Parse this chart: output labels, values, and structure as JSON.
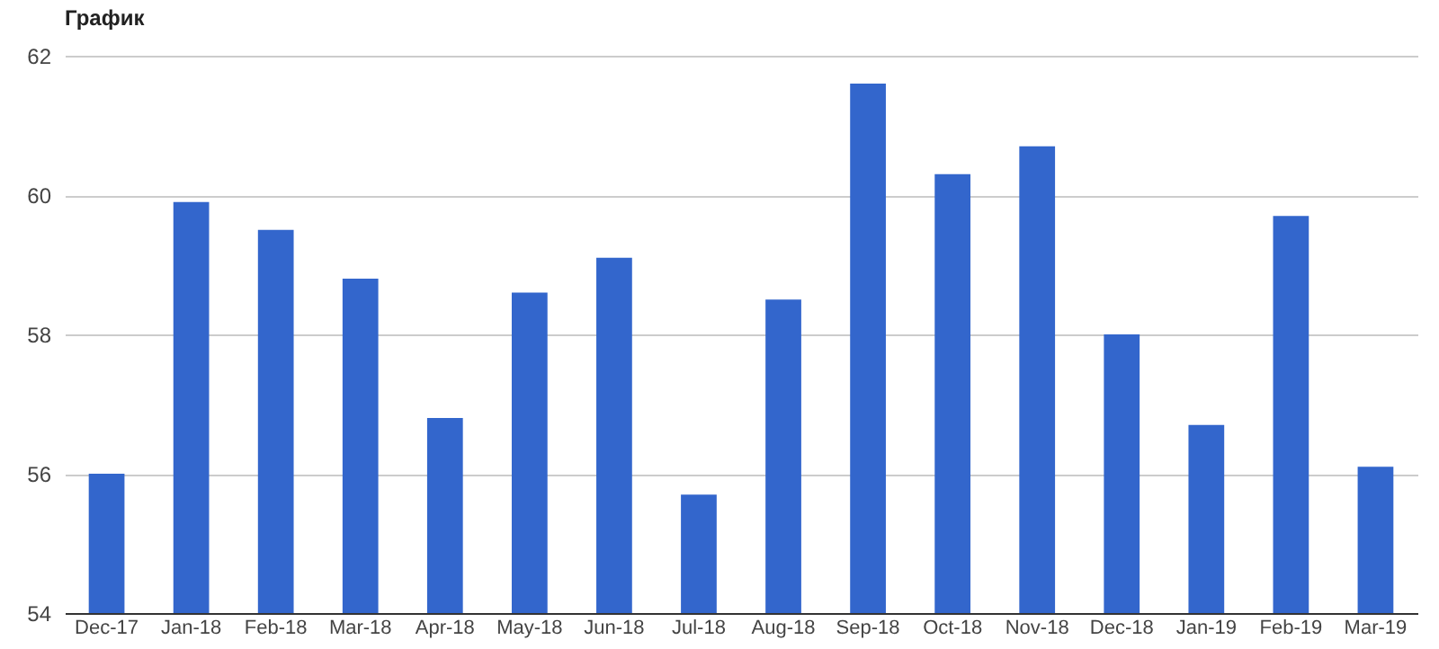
{
  "chart_data": {
    "type": "bar",
    "title": "График",
    "categories": [
      "Dec-17",
      "Jan-18",
      "Feb-18",
      "Mar-18",
      "Apr-18",
      "May-18",
      "Jun-18",
      "Jul-18",
      "Aug-18",
      "Sep-18",
      "Oct-18",
      "Nov-18",
      "Dec-18",
      "Jan-19",
      "Feb-19",
      "Mar-19"
    ],
    "values": [
      56.0,
      59.9,
      59.5,
      58.8,
      56.8,
      58.6,
      59.1,
      55.7,
      58.5,
      61.6,
      60.3,
      60.7,
      58.0,
      56.7,
      59.7,
      56.1
    ],
    "color": "#3366cc",
    "ylim": [
      54,
      62
    ],
    "yticks": [
      54,
      56,
      58,
      60,
      62
    ],
    "grid": "y"
  }
}
